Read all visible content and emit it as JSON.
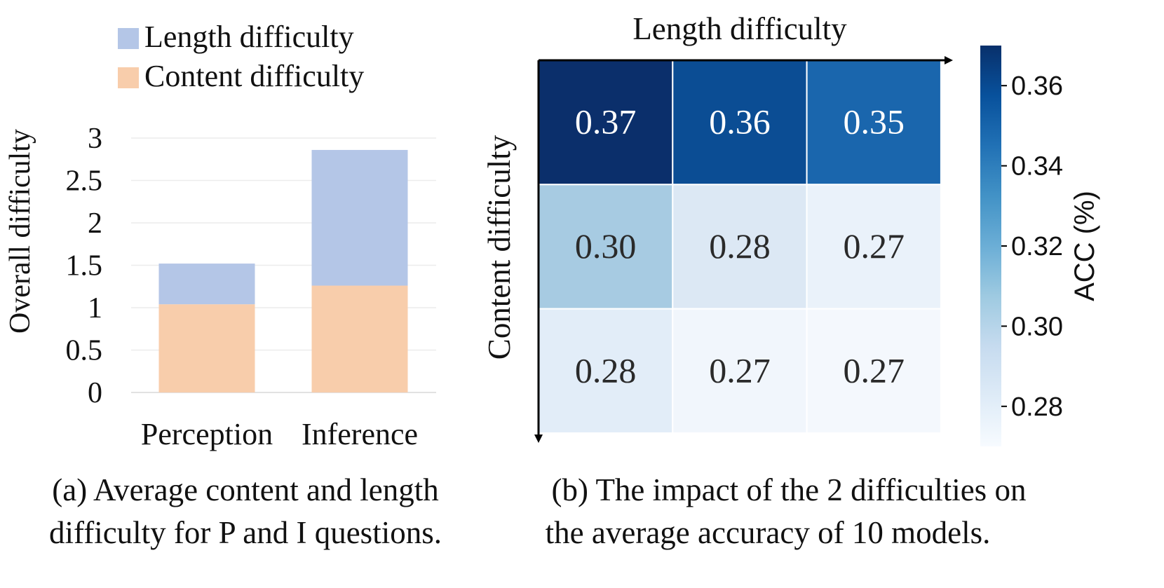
{
  "chart_data": [
    {
      "type": "bar",
      "stacked": true,
      "categories": [
        "Perception",
        "Inference"
      ],
      "series": [
        {
          "name": "Content difficulty",
          "values": [
            1.04,
            1.26
          ],
          "color": "#F8CDAB"
        },
        {
          "name": "Length difficulty",
          "values": [
            0.48,
            1.6
          ],
          "color": "#B4C6E7"
        }
      ],
      "xlabel": "",
      "ylabel": "Overall difficulty",
      "ylim": [
        0,
        3
      ],
      "yticks": [
        0,
        0.5,
        1,
        1.5,
        2,
        2.5,
        3
      ],
      "ytick_labels": [
        "0",
        "0.5",
        "1",
        "1.5",
        "2",
        "2.5",
        "3"
      ],
      "grid": true,
      "legend_position": "top",
      "caption": [
        "(a) Average content and length",
        "difficulty for P and I questions."
      ]
    },
    {
      "type": "heatmap",
      "x_label": "Length difficulty",
      "y_label": "Content difficulty",
      "values": [
        [
          0.37,
          0.36,
          0.35
        ],
        [
          0.3,
          0.28,
          0.27
        ],
        [
          0.28,
          0.27,
          0.27
        ]
      ],
      "cell_labels": [
        [
          "0.37",
          "0.36",
          "0.35"
        ],
        [
          "0.30",
          "0.28",
          "0.27"
        ],
        [
          "0.28",
          "0.27",
          "0.27"
        ]
      ],
      "cell_colors": [
        [
          "#0B2F6B",
          "#0B4D94",
          "#1A66AD"
        ],
        [
          "#A7CBE2",
          "#DCE8F4",
          "#EAF2FA"
        ],
        [
          "#E2EDF8",
          "#F1F6FC",
          "#F4F8FD"
        ]
      ],
      "colorbar": {
        "label": "ACC (%)",
        "range": [
          0.27,
          0.37
        ],
        "ticks": [
          0.28,
          0.3,
          0.32,
          0.34,
          0.36
        ],
        "tick_labels": [
          "0.28",
          "0.30",
          "0.32",
          "0.34",
          "0.36"
        ],
        "colormap": "Blues",
        "stops": [
          "#F7FBFF",
          "#DEEBF7",
          "#C6DBEF",
          "#9ECAE1",
          "#6BAED6",
          "#4292C6",
          "#2171B5",
          "#08519C",
          "#08306B"
        ]
      },
      "caption": [
        "(b) The impact of the 2 difficulties on",
        "the average accuracy of 10 models."
      ]
    }
  ]
}
